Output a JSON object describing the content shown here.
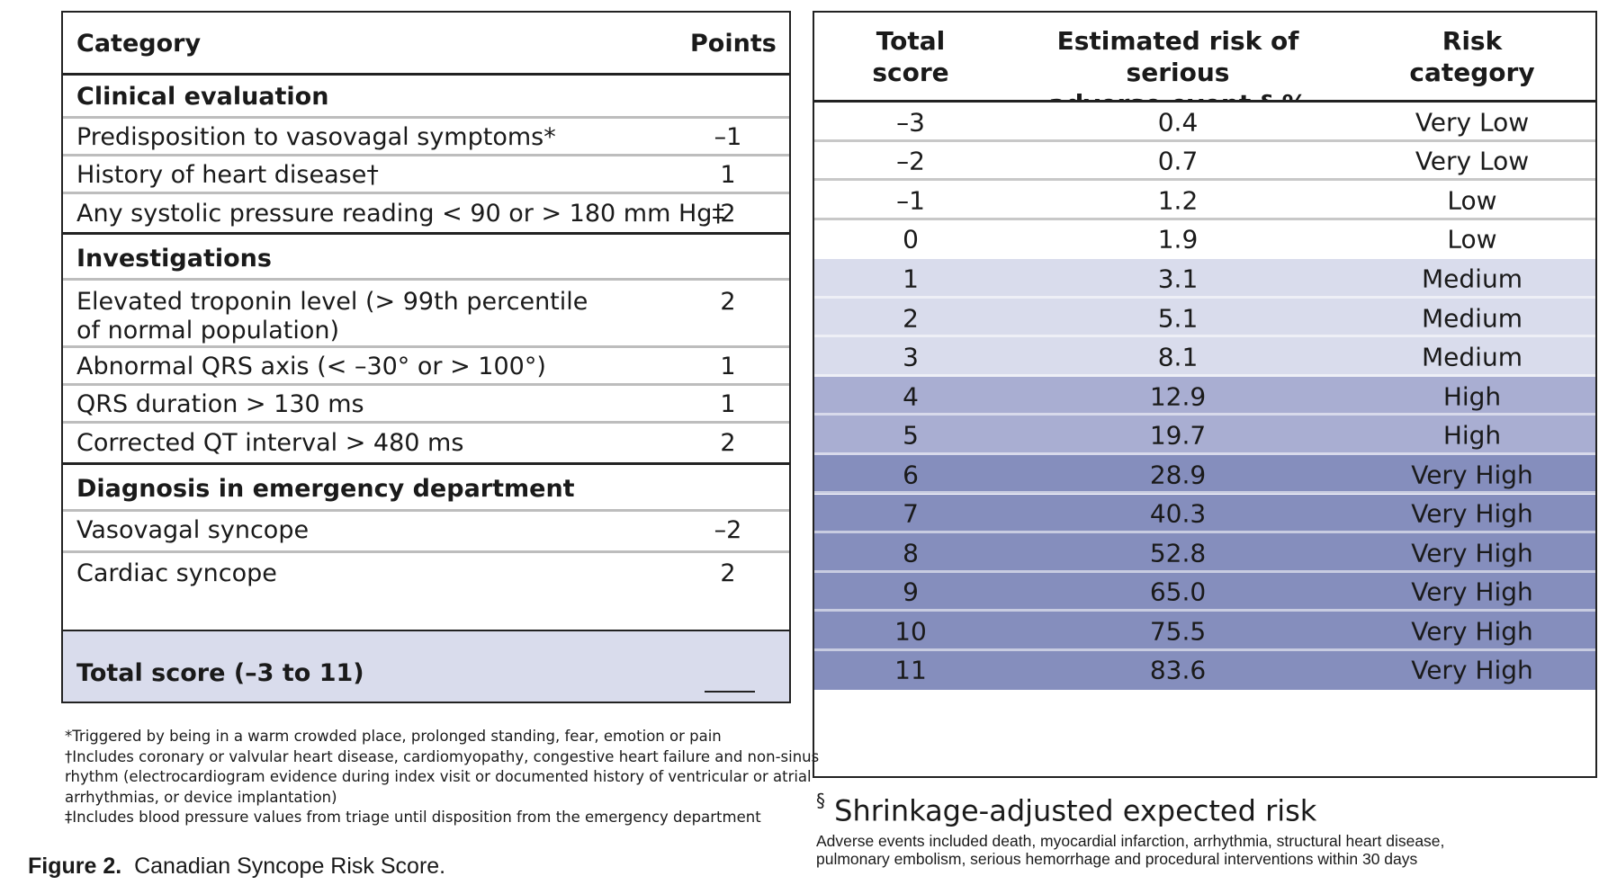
{
  "left_table": {
    "header": {
      "category": "Category",
      "points": "Points"
    },
    "sections": [
      {
        "title": "Clinical evaluation",
        "items": [
          {
            "label": "Predisposition to vasovagal symptoms*",
            "points": "–1"
          },
          {
            "label": "History of heart disease†",
            "points": "1"
          },
          {
            "label": "Any systolic pressure reading < 90 or > 180 mm Hg‡",
            "points": "2"
          }
        ]
      },
      {
        "title": "Investigations",
        "items": [
          {
            "label_line1": "Elevated troponin level (> 99th percentile",
            "label_line2": "of normal population)",
            "points": "2"
          },
          {
            "label": "Abnormal QRS axis (< –30° or > 100°)",
            "points": "1"
          },
          {
            "label": "QRS duration > 130 ms",
            "points": "1"
          },
          {
            "label": "Corrected QT interval > 480 ms",
            "points": "2"
          }
        ]
      },
      {
        "title": "Diagnosis in emergency department",
        "items": [
          {
            "label": "Vasovagal syncope",
            "points": "–2"
          },
          {
            "label": "Cardiac syncope",
            "points": "2"
          }
        ]
      }
    ],
    "total": {
      "label": "Total score (–3 to 11)"
    }
  },
  "footnotes": [
    "*Triggered by being in a warm crowded place, prolonged standing, fear, emotion or pain",
    "†Includes coronary or valvular heart disease, cardiomyopathy, congestive heart failure and non-sinus",
    "rhythm (electrocardiogram evidence during index visit or documented history of ventricular or atrial",
    "arrhythmias, or device implantation)",
    "‡Includes blood pressure values from triage until disposition from the emergency department"
  ],
  "caption": {
    "figure": "Figure 2.",
    "text": "Canadian Syncope Risk Score."
  },
  "right_table": {
    "header": {
      "score_line1": "Total",
      "score_line2": "score",
      "risk_line1": "Estimated risk of serious",
      "risk_line2": "adverse event,§ %",
      "cat_line1": "Risk",
      "cat_line2": "category"
    },
    "rows": [
      {
        "score": "–3",
        "risk": "0.4",
        "category": "Very Low",
        "color": "#ffffff"
      },
      {
        "score": "–2",
        "risk": "0.7",
        "category": "Very Low",
        "color": "#ffffff"
      },
      {
        "score": "–1",
        "risk": "1.2",
        "category": "Low",
        "color": "#ffffff"
      },
      {
        "score": "0",
        "risk": "1.9",
        "category": "Low",
        "color": "#ffffff"
      },
      {
        "score": "1",
        "risk": "3.1",
        "category": "Medium",
        "color": "#d9dcec"
      },
      {
        "score": "2",
        "risk": "5.1",
        "category": "Medium",
        "color": "#d9dcec"
      },
      {
        "score": "3",
        "risk": "8.1",
        "category": "Medium",
        "color": "#d9dcec"
      },
      {
        "score": "4",
        "risk": "12.9",
        "category": "High",
        "color": "#a9aed2"
      },
      {
        "score": "5",
        "risk": "19.7",
        "category": "High",
        "color": "#a9aed2"
      },
      {
        "score": "6",
        "risk": "28.9",
        "category": "Very High",
        "color": "#858ebd"
      },
      {
        "score": "7",
        "risk": "40.3",
        "category": "Very High",
        "color": "#858ebd"
      },
      {
        "score": "8",
        "risk": "52.8",
        "category": "Very High",
        "color": "#858ebd"
      },
      {
        "score": "9",
        "risk": "65.0",
        "category": "Very High",
        "color": "#858ebd"
      },
      {
        "score": "10",
        "risk": "75.5",
        "category": "Very High",
        "color": "#858ebd"
      },
      {
        "score": "11",
        "risk": "83.6",
        "category": "Very High",
        "color": "#858ebd"
      }
    ]
  },
  "shrinkage": {
    "symbol": "§",
    "text": "Shrinkage-adjusted expected risk"
  },
  "adverse_note": {
    "line1": "Adverse events included death, myocardial infarction, arrhythmia, structural heart disease,",
    "line2": "pulmonary embolism, serious hemorrhage and procedural interventions within 30 days"
  }
}
